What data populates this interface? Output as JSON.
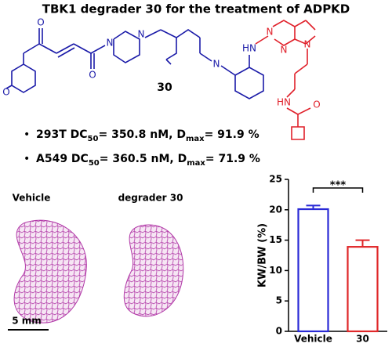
{
  "header": {
    "title": "TBK1 degrader 30 for the treatment of ADPKD"
  },
  "structure": {
    "label": "30",
    "atoms": [
      "O",
      "O",
      "N",
      "N",
      "O",
      "N",
      "HN",
      "N",
      "N",
      "N",
      "HN",
      "O"
    ]
  },
  "bullets": [
    [
      "293T DC",
      "50",
      "= 350.8 nM, D",
      "max",
      "= 91.9 %"
    ],
    [
      "A549 DC",
      "50",
      "= 360.5 nM, D",
      "max",
      "= 71.9 %"
    ]
  ],
  "histology": {
    "labels": [
      "Vehicle",
      "degrader 30"
    ],
    "scale_bar": "5 mm"
  },
  "chart_data": {
    "type": "bar",
    "ylabel": "KW/BW (%)",
    "categories": [
      "Vehicle",
      "30"
    ],
    "values": [
      20.1,
      13.9
    ],
    "errors": [
      0.6,
      1.1
    ],
    "colors": [
      "#2a2ad6",
      "#e0282a"
    ],
    "ylim": [
      0,
      25
    ],
    "yticks": [
      0,
      5,
      10,
      15,
      20,
      25
    ],
    "significance": "***"
  }
}
